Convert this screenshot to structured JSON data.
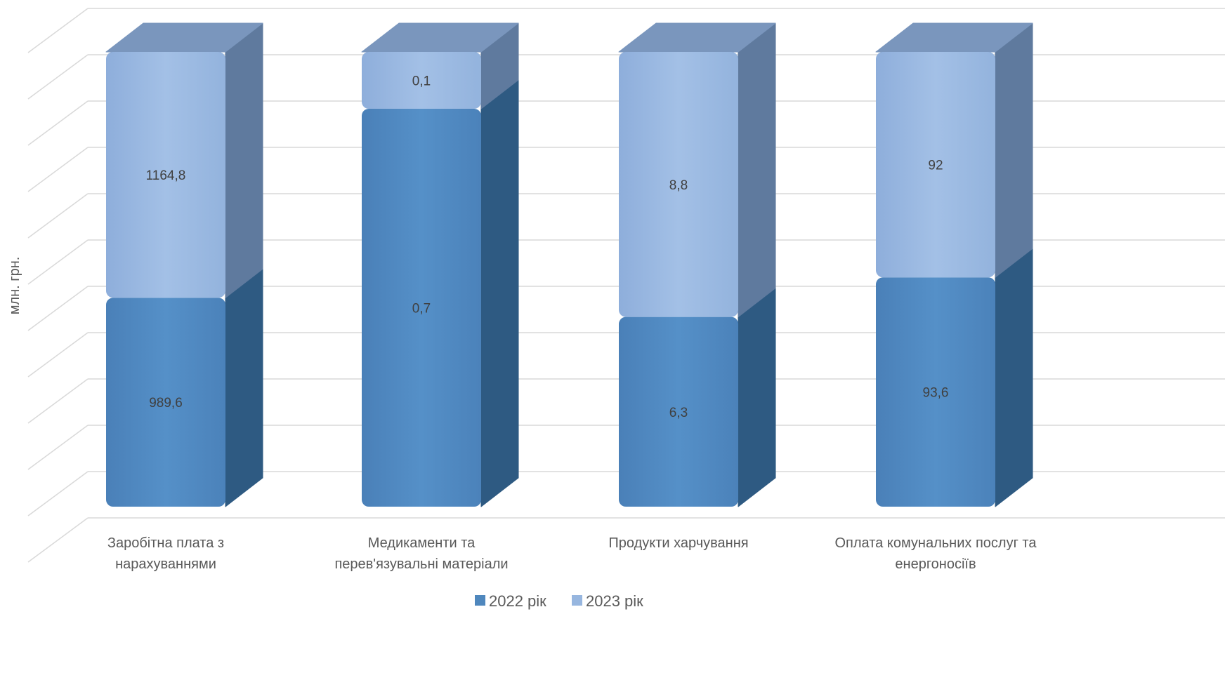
{
  "chart_data": {
    "type": "bar",
    "stacked": true,
    "three_d": true,
    "ylabel": "млн. грн.",
    "categories": [
      [
        "Заробітна плата з",
        "нарахуваннями"
      ],
      [
        "Медикаменти та",
        "перев'язувальні матеріали"
      ],
      [
        "Продукти харчування"
      ],
      [
        "Оплата комунальних послуг та",
        "енергоносіїв"
      ]
    ],
    "series": [
      {
        "name": "2022 рік",
        "values": [
          989.6,
          0.7,
          6.3,
          93.6
        ],
        "labels": [
          "989,6",
          "0,7",
          "6,3",
          "93,6"
        ],
        "color": "#4f87bd"
      },
      {
        "name": "2023 рік",
        "values": [
          1164.8,
          0.1,
          8.8,
          92
        ],
        "labels": [
          "1164,8",
          "0,1",
          "8,8",
          "92"
        ],
        "color": "#97b6df"
      }
    ],
    "normalized": "100% stacked",
    "grid": true,
    "legend": "bottom",
    "gridline_count": 11
  }
}
